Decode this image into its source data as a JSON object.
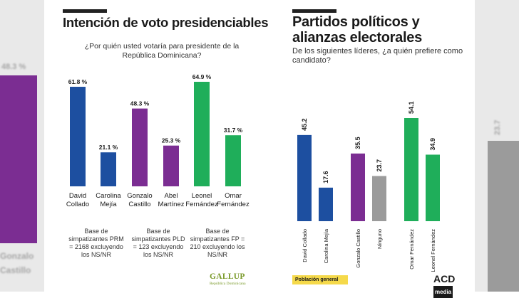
{
  "background": {
    "left_value": "48.3 %",
    "left_label": "Gonzalo Castillo",
    "right_value": "23.7",
    "left_color": "#7b2d92",
    "right_color": "#9b9b9b"
  },
  "left_panel": {
    "title": "Intención de voto presidenciables",
    "question": "¿Por quién usted votaría para presidente de la República Dominicana?",
    "bases": [
      "Base de simpatizantes PRM = 2168 excluyendo los NS/NR",
      "Base de simpatizantes PLD = 123 excluyendo los NS/NR",
      "Base de simpatizantes FP = 210 excluyendo los NS/NR"
    ],
    "source_logo": "GALLUP",
    "source_sub": "República Dominicana"
  },
  "right_panel": {
    "title": "Partidos políticos y alianzas electorales",
    "subtitle": "De los siguientes líderes, ¿a quién prefiere como candidato?",
    "badge": "Población general",
    "source_logo": "ACD",
    "source_logo_suffix": "media"
  },
  "chart_data": [
    {
      "type": "bar",
      "title": "Intención de voto presidenciables",
      "categories": [
        "David Collado",
        "Carolina Mejía",
        "Gonzalo Castillo",
        "Abel Martínez",
        "Leonel Fernández",
        "Omar Fernández"
      ],
      "category_lines": [
        [
          "David",
          "Collado"
        ],
        [
          "Carolina",
          "Mejía"
        ],
        [
          "Gonzalo",
          "Castillo"
        ],
        [
          "Abel",
          "Martínez"
        ],
        [
          "Leonel",
          "Fernández"
        ],
        [
          "Omar",
          "Fernández"
        ]
      ],
      "values": [
        61.8,
        21.1,
        48.3,
        25.3,
        64.9,
        31.7
      ],
      "value_labels": [
        "61.8 %",
        "21.1 %",
        "48.3 %",
        "25.3 %",
        "64.9 %",
        "31.7 %"
      ],
      "colors": [
        "#1d4fa0",
        "#1d4fa0",
        "#7b2d92",
        "#7b2d92",
        "#1fae5a",
        "#1fae5a"
      ],
      "ylim": [
        0,
        70
      ],
      "grid": false,
      "legend": "none"
    },
    {
      "type": "bar",
      "title": "Partidos políticos y alianzas electorales",
      "categories": [
        "David Collado",
        "Carolina Mejía",
        "Gonzalo Castillo",
        "Ninguno",
        "Omar Fernández",
        "Leonel Fernández"
      ],
      "values": [
        45.2,
        17.6,
        35.5,
        23.7,
        54.1,
        34.9
      ],
      "value_labels": [
        "45.2",
        "17.6",
        "35.5",
        "23.7",
        "54.1",
        "34.9"
      ],
      "colors": [
        "#1d4fa0",
        "#1d4fa0",
        "#7b2d92",
        "#9b9b9b",
        "#1fae5a",
        "#1fae5a"
      ],
      "ylim": [
        0,
        60
      ],
      "grid": false,
      "legend": "none"
    }
  ]
}
